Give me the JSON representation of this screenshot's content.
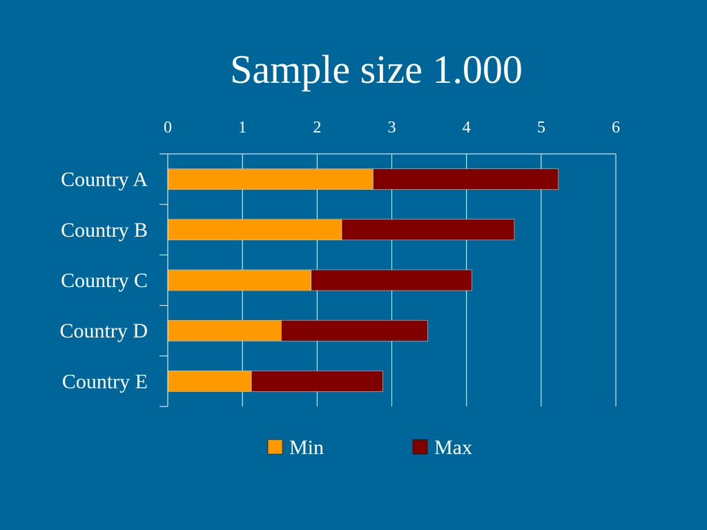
{
  "chart_data": {
    "type": "bar",
    "orientation": "horizontal",
    "stacked": true,
    "title": "Sample size 1.000",
    "categories": [
      "Country A",
      "Country B",
      "Country C",
      "Country D",
      "Country E"
    ],
    "series": [
      {
        "name": "Min",
        "values": [
          2.75,
          2.33,
          1.92,
          1.52,
          1.12
        ],
        "color": "#FF9900"
      },
      {
        "name": "Max",
        "values": [
          2.48,
          2.31,
          2.15,
          1.96,
          1.76
        ],
        "color": "#800000"
      }
    ],
    "xlim": [
      0,
      6
    ],
    "xticks": [
      0,
      1,
      2,
      3,
      4,
      5,
      6
    ],
    "xaxis_position": "top",
    "grid": true,
    "legend_position": "bottom",
    "colors": {
      "background": "#006699",
      "text": "#FFFFFF",
      "gridlines": "#FFFFFF"
    }
  }
}
